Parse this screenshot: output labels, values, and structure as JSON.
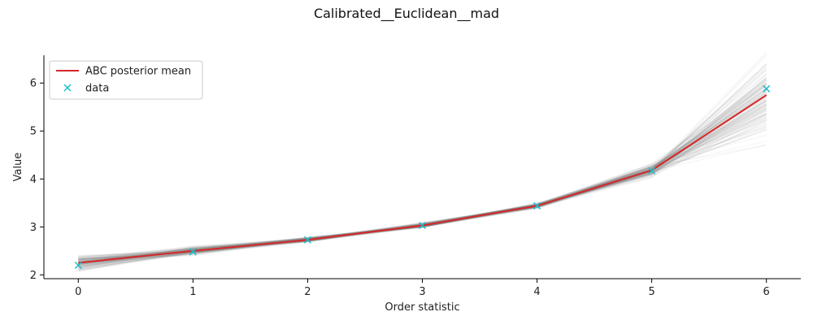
{
  "chart_data": {
    "type": "line",
    "title": "Calibrated__Euclidean__mad",
    "xlabel": "Order statistic",
    "ylabel": "Value",
    "xlim": [
      -0.3,
      6.3
    ],
    "ylim": [
      1.92,
      6.58
    ],
    "x_ticks": [
      "0",
      "1",
      "2",
      "3",
      "4",
      "5",
      "6"
    ],
    "y_ticks": [
      "2",
      "3",
      "4",
      "5",
      "6"
    ],
    "x": [
      0,
      1,
      2,
      3,
      4,
      5,
      6
    ],
    "series": [
      {
        "name": "ABC posterior mean",
        "kind": "line",
        "color": "#d62728",
        "values": [
          2.25,
          2.5,
          2.73,
          3.03,
          3.44,
          4.18,
          5.75
        ]
      },
      {
        "name": "data",
        "kind": "marker",
        "marker": "x",
        "color": "#17becf",
        "values": [
          2.2,
          2.48,
          2.73,
          3.03,
          3.44,
          4.17,
          5.88
        ]
      }
    ],
    "posterior_samples": {
      "color": "#808080",
      "spread": [
        0.08,
        0.04,
        0.025,
        0.025,
        0.025,
        0.06,
        0.42
      ]
    },
    "legend": {
      "position": "top-left",
      "entries": [
        "ABC posterior mean",
        "data"
      ]
    },
    "grid": false
  }
}
